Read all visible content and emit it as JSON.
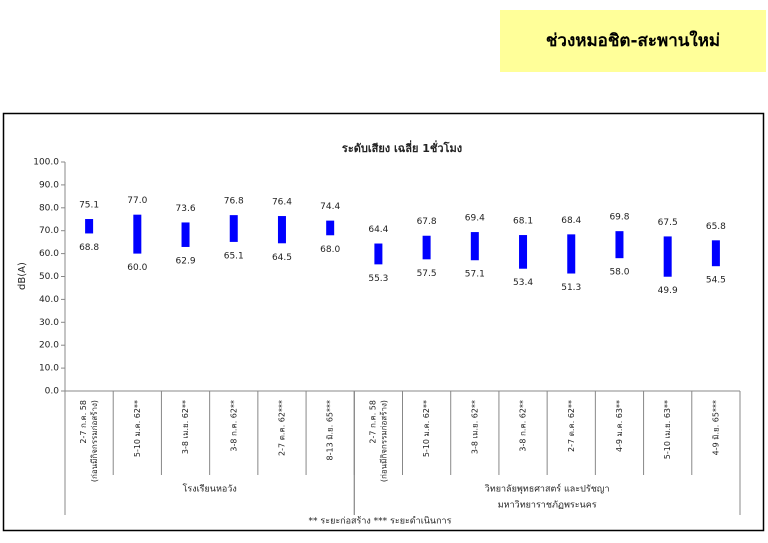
{
  "header": {
    "title": "ช่วงหมอชิต-สะพานใหม่"
  },
  "chart_data": {
    "type": "floating-bar",
    "title": "ระดับเสียง เฉลี่ย 1ชั่วโมง",
    "y_label": "dB(A)",
    "color": "#0000ff",
    "categories": [
      [
        "2-7 ก.ค. 58",
        "(ก่อนมีกิจกรรมก่อสร้าง)"
      ],
      [
        "5-10 ม.ค. 62**"
      ],
      [
        "3-8 เม.ย. 62**"
      ],
      [
        "3-8 ก.ค. 62**"
      ],
      [
        "2-7 ต.ค. 62***"
      ],
      [
        "8-13 มิ.ย. 65***"
      ],
      [
        "2-7 ก.ค. 58",
        "(ก่อนมีกิจกรรมก่อสร้าง)"
      ],
      [
        "5-10 ม.ค. 62**"
      ],
      [
        "3-8 เม.ย. 62**"
      ],
      [
        "3-8 ก.ค. 62**"
      ],
      [
        "2-7 ต.ค. 62**"
      ],
      [
        "4-9 ม.ค. 63**"
      ],
      [
        "5-10 เม.ย. 63**"
      ],
      [
        "4-9 มิ.ย. 65***"
      ]
    ],
    "high": [
      75.1,
      77.0,
      73.6,
      76.8,
      76.4,
      74.4,
      64.4,
      67.8,
      69.4,
      68.1,
      68.4,
      69.8,
      67.5,
      65.8
    ],
    "high_value_labels": [
      "75.1",
      "77.0",
      "73.6",
      "76.8",
      "76.4",
      "74.4",
      "64.4",
      "67.8",
      "69.4",
      "68.1",
      "68.4",
      "69.8",
      "67.5",
      "65.8"
    ],
    "low": [
      68.8,
      60.0,
      62.9,
      65.1,
      64.5,
      68.0,
      55.3,
      57.5,
      57.1,
      53.4,
      51.3,
      58.0,
      49.9,
      54.5
    ],
    "low_value_labels": [
      "68.8",
      "60.0",
      "62.9",
      "65.1",
      "64.5",
      "68.0",
      "55.3",
      "57.5",
      "57.1",
      "53.4",
      "51.3",
      "58.0",
      "49.9",
      "54.5"
    ],
    "groups": [
      {
        "lines": [
          "โรงเรียนหอวัง"
        ],
        "count": 6
      },
      {
        "lines": [
          "วิทยาลัยพุทธศาสตร์ และปรัชญา",
          "มหาวิทยาราชภัฏพระนคร"
        ],
        "count": 8
      }
    ],
    "footnote": "** ระยะก่อสร้าง    *** ระยะดำเนินการ",
    "ylim": [
      0,
      100
    ],
    "yticks": [
      {
        "value": 0,
        "label": "0.0"
      },
      {
        "value": 10,
        "label": "10.0"
      },
      {
        "value": 20,
        "label": "20.0"
      },
      {
        "value": 30,
        "label": "30.0"
      },
      {
        "value": 40,
        "label": "40.0"
      },
      {
        "value": 50,
        "label": "50.0"
      },
      {
        "value": 60,
        "label": "60.0"
      },
      {
        "value": 70,
        "label": "70.0"
      },
      {
        "value": 80,
        "label": "80.0"
      },
      {
        "value": 90,
        "label": "90.0"
      },
      {
        "value": 100,
        "label": "100.0"
      }
    ]
  }
}
